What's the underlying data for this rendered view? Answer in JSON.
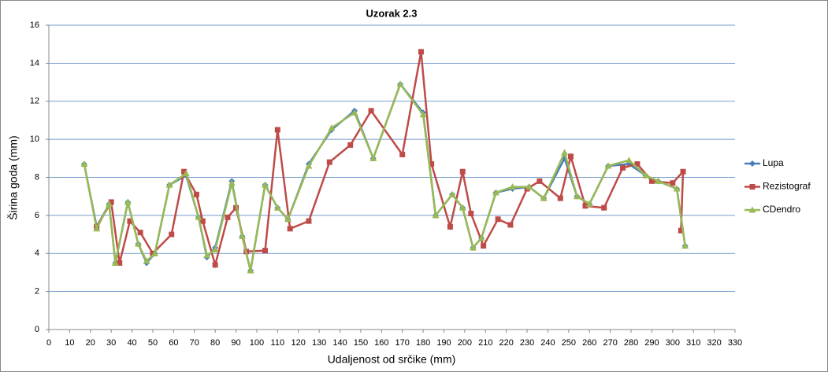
{
  "chart_data": {
    "type": "line",
    "title": "Uzorak 2.3",
    "x_label": "Udaljenost od srčike (mm)",
    "y_label": "Širina goda (mm)",
    "xlim": [
      0,
      330
    ],
    "xticks": [
      0,
      10,
      20,
      30,
      40,
      50,
      60,
      70,
      80,
      90,
      100,
      110,
      120,
      130,
      140,
      150,
      160,
      170,
      180,
      190,
      200,
      210,
      220,
      230,
      240,
      250,
      260,
      270,
      280,
      290,
      300,
      310,
      320,
      330
    ],
    "ylim": [
      0,
      16
    ],
    "yticks": [
      0,
      2,
      4,
      6,
      8,
      10,
      12,
      14,
      16
    ],
    "grid": true,
    "legend": "right",
    "series": [
      {
        "name": "Lupa",
        "color": "#4a7ebb",
        "marker": "diamond",
        "x": [
          17,
          23,
          29,
          32,
          38,
          43,
          47,
          51,
          58,
          66,
          72,
          76,
          80,
          88,
          93,
          97,
          104,
          110,
          115,
          125,
          136,
          147,
          156,
          169,
          180,
          186,
          194,
          199,
          204,
          208,
          215,
          223,
          231,
          238,
          248,
          254,
          260,
          269,
          279,
          287,
          293,
          302,
          306
        ],
        "values": [
          8.7,
          5.4,
          6.6,
          3.5,
          6.7,
          4.5,
          3.5,
          4.0,
          7.6,
          8.1,
          5.9,
          3.8,
          4.3,
          7.8,
          4.9,
          3.1,
          7.6,
          6.4,
          5.8,
          8.7,
          10.5,
          11.5,
          9.0,
          12.9,
          11.4,
          6.0,
          7.1,
          6.4,
          4.3,
          4.8,
          7.2,
          7.4,
          7.5,
          6.9,
          9.0,
          7.0,
          6.6,
          8.6,
          8.7,
          8.1,
          7.8,
          7.4,
          4.4
        ]
      },
      {
        "name": "Rezistograf",
        "color": "#be4b48",
        "marker": "square",
        "x": [
          23,
          30,
          34,
          39,
          44,
          50,
          59,
          65,
          71,
          74,
          80,
          86,
          90,
          95,
          104,
          110,
          116,
          125,
          135,
          145,
          155,
          170,
          179,
          184,
          193,
          199,
          203,
          209,
          216,
          222,
          230,
          236,
          246,
          251,
          258,
          267,
          276,
          283,
          290,
          300,
          305,
          304
        ],
        "values": [
          5.4,
          6.7,
          3.5,
          5.7,
          5.1,
          4.0,
          5.0,
          8.3,
          7.1,
          5.7,
          3.4,
          5.9,
          6.4,
          4.1,
          4.15,
          10.5,
          5.3,
          5.7,
          8.8,
          9.7,
          11.5,
          9.2,
          14.6,
          8.7,
          5.4,
          8.3,
          6.1,
          4.4,
          5.8,
          5.5,
          7.4,
          7.8,
          6.9,
          9.1,
          6.5,
          6.4,
          8.5,
          8.7,
          7.8,
          7.7,
          8.3,
          5.2
        ]
      },
      {
        "name": "CDendro",
        "color": "#98b954",
        "marker": "triangle",
        "x": [
          17,
          23,
          29,
          32,
          38,
          43,
          47,
          51,
          58,
          66,
          72,
          76,
          80,
          88,
          93,
          97,
          104,
          110,
          115,
          125,
          136,
          147,
          156,
          169,
          180,
          186,
          194,
          199,
          204,
          208,
          215,
          223,
          231,
          238,
          248,
          254,
          260,
          269,
          279,
          287,
          293,
          302,
          306
        ],
        "values": [
          8.7,
          5.3,
          6.6,
          3.5,
          6.7,
          4.5,
          3.6,
          4.0,
          7.6,
          8.2,
          5.9,
          3.9,
          4.2,
          7.7,
          4.9,
          3.1,
          7.6,
          6.4,
          5.8,
          8.6,
          10.6,
          11.4,
          9.0,
          12.9,
          11.3,
          6.0,
          7.1,
          6.4,
          4.3,
          4.8,
          7.2,
          7.5,
          7.5,
          6.9,
          9.3,
          7.0,
          6.6,
          8.6,
          8.9,
          8.1,
          7.8,
          7.4,
          4.4
        ]
      }
    ]
  }
}
